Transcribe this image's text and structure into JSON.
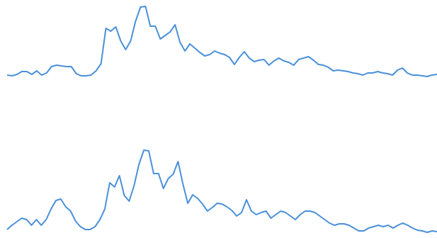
{
  "chart_data": [
    {
      "type": "line",
      "color": "#4a90d9",
      "ylim": [
        0,
        115
      ],
      "values": [
        9,
        8,
        10,
        14,
        14,
        10,
        15,
        9,
        12,
        21,
        23,
        22,
        21,
        21,
        11,
        8,
        8,
        9,
        15,
        25,
        75,
        71,
        77,
        57,
        45,
        57,
        85,
        105,
        106,
        78,
        78,
        60,
        65,
        70,
        80,
        55,
        43,
        53,
        47,
        41,
        36,
        38,
        43,
        40,
        38,
        34,
        24,
        34,
        42,
        33,
        28,
        30,
        31,
        23,
        29,
        33,
        29,
        27,
        23,
        31,
        33,
        35,
        30,
        24,
        23,
        20,
        15,
        16,
        15,
        14,
        12,
        11,
        9,
        12,
        12,
        14,
        12,
        11,
        9,
        16,
        19,
        12,
        9,
        9,
        8,
        7,
        9,
        10
      ]
    },
    {
      "type": "line",
      "color": "#4a90d9",
      "ylim": [
        0,
        130
      ],
      "values": [
        11,
        17,
        22,
        27,
        25,
        17,
        25,
        17,
        25,
        40,
        52,
        54,
        43,
        37,
        23,
        15,
        11,
        11,
        15,
        25,
        40,
        77,
        71,
        87,
        59,
        51,
        73,
        103,
        123,
        122,
        90,
        90,
        69,
        83,
        89,
        107,
        75,
        48,
        60,
        55,
        47,
        37,
        42,
        48,
        47,
        43,
        38,
        30,
        35,
        53,
        37,
        32,
        35,
        37,
        27,
        32,
        37,
        35,
        30,
        25,
        32,
        37,
        37,
        35,
        30,
        25,
        20,
        17,
        19,
        19,
        17,
        13,
        9,
        9,
        13,
        15,
        17,
        15,
        17,
        13,
        17,
        20,
        17,
        13,
        10,
        9,
        7,
        9,
        8
      ]
    }
  ]
}
